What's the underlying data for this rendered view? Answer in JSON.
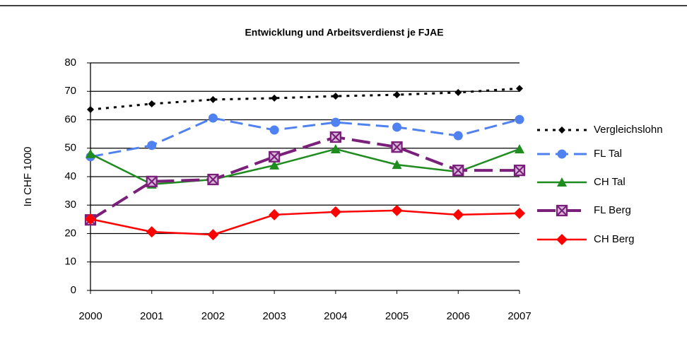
{
  "chart_data": {
    "type": "line",
    "title": "Entwicklung und Arbeitsverdienst je FJAE",
    "ylabel": "In CHF 1000",
    "categories": [
      "2000",
      "2001",
      "2002",
      "2003",
      "2004",
      "2005",
      "2006",
      "2007"
    ],
    "ylim": [
      0,
      80
    ],
    "yticks": [
      0,
      10,
      20,
      30,
      40,
      50,
      60,
      70,
      80
    ],
    "grid": true,
    "legend": "right",
    "series": [
      {
        "name": "Vergleichslohn",
        "color": "#000000",
        "marker": "diamond-small",
        "dash": "dotted",
        "values": [
          63.6,
          65.6,
          67.1,
          67.6,
          68.3,
          68.8,
          69.6,
          71.0
        ]
      },
      {
        "name": "FL Tal",
        "color": "#4f81f0",
        "marker": "circle",
        "dash": "dashed",
        "values": [
          47.0,
          51.0,
          60.6,
          56.4,
          59.1,
          57.4,
          54.4,
          60.1
        ]
      },
      {
        "name": "CH Tal",
        "color": "#1e8c1e",
        "marker": "triangle",
        "dash": "solid",
        "values": [
          48.0,
          37.3,
          39.0,
          44.0,
          49.7,
          44.2,
          41.7,
          49.7
        ]
      },
      {
        "name": "FL Berg",
        "color": "#7a1f7a",
        "marker": "square-x",
        "dash": "longdash",
        "values": [
          24.8,
          38.3,
          39.0,
          47.0,
          53.9,
          50.4,
          42.2,
          42.2
        ]
      },
      {
        "name": "CH Berg",
        "color": "#ff0000",
        "marker": "diamond",
        "dash": "solid",
        "values": [
          25.1,
          20.6,
          19.6,
          26.6,
          27.6,
          28.1,
          26.6,
          27.1
        ]
      }
    ]
  }
}
